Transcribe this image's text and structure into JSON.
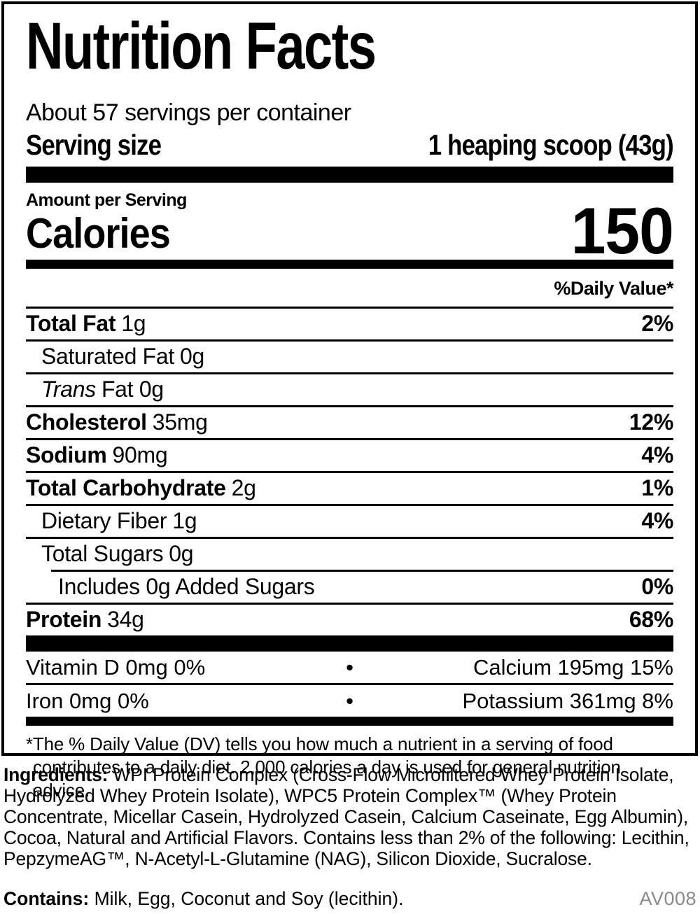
{
  "panel": {
    "title": "Nutrition Facts",
    "servings_per_container": "About 57 servings per container",
    "serving_size": {
      "label": "Serving size",
      "value": "1 heaping scoop (43g)"
    },
    "amount_per_serving": "Amount per Serving",
    "calories": {
      "label": "Calories",
      "value": "150"
    },
    "daily_value_header": "%Daily Value*",
    "nutrient_rows": [
      {
        "name": "Total Fat",
        "amount": "1g",
        "dv": "2%"
      },
      {
        "name": "Saturated Fat",
        "amount": "0g",
        "dv": ""
      },
      {
        "name": "Trans",
        "amount": "Fat 0g",
        "dv": ""
      },
      {
        "name": "Cholesterol",
        "amount": "35mg",
        "dv": "12%"
      },
      {
        "name": "Sodium",
        "amount": "90mg",
        "dv": "4%"
      },
      {
        "name": "Total Carbohydrate",
        "amount": "2g",
        "dv": "1%"
      },
      {
        "name": "Dietary Fiber",
        "amount": "1g",
        "dv": "4%"
      },
      {
        "name": "Total Sugars",
        "amount": "0g",
        "dv": ""
      },
      {
        "name": "Includes 0g Added Sugars",
        "amount": "",
        "dv": "0%"
      },
      {
        "name": "Protein",
        "amount": "34g",
        "dv": "68%"
      }
    ],
    "micronutrients": {
      "bullet": "•",
      "rows": [
        {
          "left": "Vitamin D 0mg 0%",
          "right": "Calcium 195mg 15%"
        },
        {
          "left": "Iron 0mg 0%",
          "right": "Potassium 361mg 8%"
        }
      ]
    },
    "footnote": "*The % Daily Value (DV) tells you how much a nutrient in a serving of food contributes to a daily diet. 2,000 calories a day is used for general nutrition advice."
  },
  "ingredients": {
    "label": "Ingredients:",
    "text": "WPI Protein Complex (Cross-Flow Microfiltered Whey Protein Isolate, Hydrolyzed Whey Protein Isolate), WPC5 Protein Complex™ (Whey Protein Concentrate, Micellar Casein, Hydrolyzed Casein, Calcium Caseinate, Egg Albumin), Cocoa, Natural and Artificial Flavors. Contains less than 2% of the following: Lecithin, PepzymeAG™, N-Acetyl-L-Glutamine (NAG), Silicon Dioxide, Sucralose."
  },
  "contains": {
    "label": "Contains:",
    "text": "Milk, Egg, Coconut and Soy (lecithin)."
  },
  "product_code": "AV008",
  "colors": {
    "text": "#000000",
    "rule": "#000000",
    "background": "#ffffff",
    "product_code": "#8a8a8a"
  }
}
